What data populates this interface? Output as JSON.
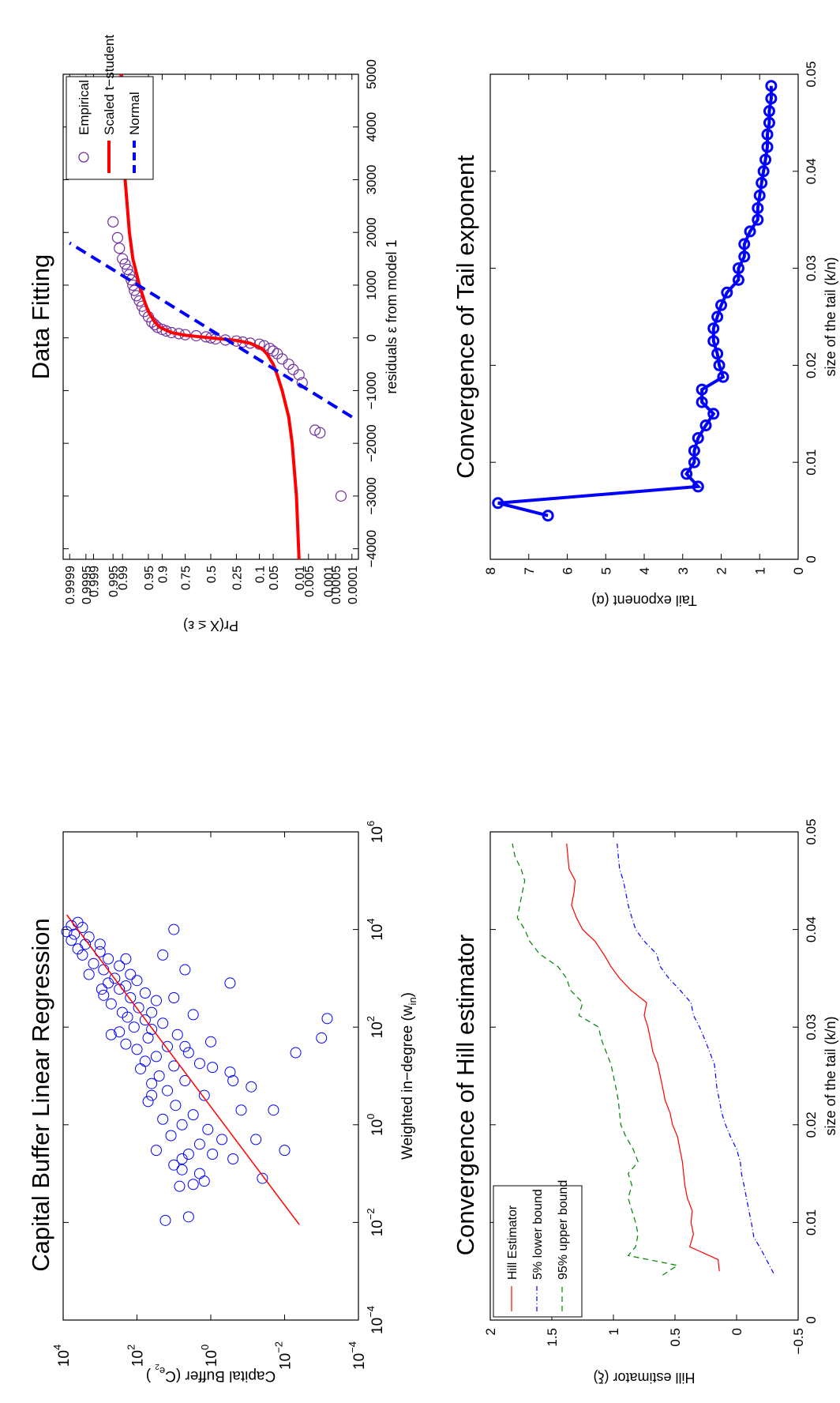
{
  "chart_data": [
    {
      "id": "capital-buffer",
      "type": "scatter",
      "title": "Capital Buffer Linear Regression",
      "xlabel": "Weighted in−degree (w",
      "xlabel_sub": "in",
      "xlabel_end": ")",
      "ylabel": "Capital Buffer (C",
      "ylabel_sub": "e",
      "ylabel_subsub": "2",
      "ylabel_end": " )",
      "xscale": "log",
      "yscale": "log",
      "xlim": [
        0.0001,
        1000000
      ],
      "ylim": [
        0.0001,
        10000
      ],
      "xticks": [
        0.0001,
        0.01,
        1,
        100,
        10000,
        1000000
      ],
      "xtick_labels": [
        {
          "base": "10",
          "exp": "−4"
        },
        {
          "base": "10",
          "exp": "−2"
        },
        {
          "base": "10",
          "exp": "0"
        },
        {
          "base": "10",
          "exp": "2"
        },
        {
          "base": "10",
          "exp": "4"
        },
        {
          "base": "10",
          "exp": "6"
        }
      ],
      "yticks": [
        0.0001,
        0.01,
        1,
        100,
        10000
      ],
      "ytick_labels": [
        {
          "base": "10",
          "exp": "−4"
        },
        {
          "base": "10",
          "exp": "−2"
        },
        {
          "base": "10",
          "exp": "0"
        },
        {
          "base": "10",
          "exp": "2"
        },
        {
          "base": "10",
          "exp": "4"
        }
      ],
      "regression": {
        "x": [
          0.009,
          20000
        ],
        "y": [
          0.004,
          8000
        ],
        "color": "#ff0000"
      },
      "marker_color": "#0000ff",
      "points": [
        [
          0.011,
          17
        ],
        [
          0.013,
          4
        ],
        [
          0.055,
          7
        ],
        [
          0.06,
          3
        ],
        [
          0.07,
          1.5
        ],
        [
          0.08,
          0.04
        ],
        [
          0.1,
          2
        ],
        [
          0.12,
          6
        ],
        [
          0.15,
          10
        ],
        [
          0.2,
          0.25
        ],
        [
          0.25,
          4
        ],
        [
          0.3,
          30
        ],
        [
          0.4,
          2
        ],
        [
          0.5,
          0.5
        ],
        [
          0.6,
          12
        ],
        [
          0.8,
          1.2
        ],
        [
          1,
          6
        ],
        [
          1.3,
          20
        ],
        [
          1.6,
          3
        ],
        [
          2,
          0.15
        ],
        [
          2.5,
          9
        ],
        [
          3,
          50
        ],
        [
          4,
          1.5
        ],
        [
          5,
          15
        ],
        [
          6,
          0.08
        ],
        [
          7,
          40
        ],
        [
          8,
          5
        ],
        [
          10,
          25
        ],
        [
          12,
          0.3
        ],
        [
          14,
          80
        ],
        [
          16,
          10
        ],
        [
          18,
          2
        ],
        [
          20,
          60
        ],
        [
          25,
          30
        ],
        [
          30,
          4
        ],
        [
          35,
          100
        ],
        [
          40,
          15
        ],
        [
          45,
          200
        ],
        [
          50,
          1
        ],
        [
          60,
          50
        ],
        [
          70,
          8
        ],
        [
          80,
          300
        ],
        [
          90,
          40
        ],
        [
          100,
          120
        ],
        [
          120,
          20
        ],
        [
          140,
          60
        ],
        [
          160,
          180
        ],
        [
          180,
          3
        ],
        [
          200,
          250
        ],
        [
          250,
          90
        ],
        [
          300,
          500
        ],
        [
          350,
          30
        ],
        [
          400,
          150
        ],
        [
          450,
          800
        ],
        [
          500,
          60
        ],
        [
          600,
          300
        ],
        [
          700,
          200
        ],
        [
          800,
          600
        ],
        [
          900,
          100
        ],
        [
          1000,
          400
        ],
        [
          1200,
          2000
        ],
        [
          1500,
          800
        ],
        [
          1800,
          300
        ],
        [
          2000,
          1500
        ],
        [
          2500,
          600
        ],
        [
          3000,
          3000
        ],
        [
          3500,
          1000
        ],
        [
          4000,
          4000
        ],
        [
          5000,
          2500
        ],
        [
          6000,
          6000
        ],
        [
          7000,
          2000
        ],
        [
          8000,
          5000
        ],
        [
          9000,
          8000
        ],
        [
          10000,
          10
        ],
        [
          11000,
          3000
        ],
        [
          12000,
          6000
        ],
        [
          14000,
          4000
        ],
        [
          0.3,
          0.01
        ],
        [
          0.5,
          0.06
        ],
        [
          2,
          0.02
        ],
        [
          30,
          0.005
        ],
        [
          60,
          0.001
        ],
        [
          150,
          0.0007
        ],
        [
          800,
          0.3
        ],
        [
          1500,
          5
        ],
        [
          3000,
          20
        ],
        [
          0.2,
          6
        ],
        [
          0.25,
          0.9
        ],
        [
          15,
          0.9
        ],
        [
          8,
          0.25
        ],
        [
          4,
          40
        ],
        [
          40,
          5
        ],
        [
          70,
          500
        ],
        [
          200,
          40
        ],
        [
          400,
          10
        ],
        [
          600,
          900
        ],
        [
          1200,
          150
        ],
        [
          2500,
          200
        ],
        [
          5000,
          1000
        ]
      ]
    },
    {
      "id": "data-fitting",
      "type": "line",
      "title": "Data Fitting",
      "xlabel": "residuals ε from model 1",
      "ylabel": "Pr(X ≤ ε)",
      "xlim": [
        -4200,
        5000
      ],
      "xticks": [
        -4000,
        -3000,
        -2000,
        -1000,
        0,
        1000,
        2000,
        3000,
        4000,
        5000
      ],
      "xtick_labels": [
        "−4000",
        "−3000",
        "−2000",
        "−1000",
        "0",
        "1000",
        "2000",
        "3000",
        "4000",
        "5000"
      ],
      "yticks": [
        0.0001,
        0.0005,
        0.001,
        0.005,
        0.01,
        0.05,
        0.1,
        0.25,
        0.5,
        0.75,
        0.9,
        0.95,
        0.99,
        0.995,
        0.999,
        0.9995,
        0.9999
      ],
      "ytick_labels": [
        "0.0001",
        "0.0005",
        "0.001",
        "0.005",
        "0.01",
        "0.05",
        "0.1",
        "0.25",
        "0.5",
        "0.75",
        "0.9",
        "0.95",
        "0.99",
        "0.995",
        "0.999",
        "0.9995",
        "0.9999"
      ],
      "legend": {
        "position": "top-right",
        "entries": [
          "Empirical",
          "Scaled t−student",
          "Normal"
        ]
      },
      "series": [
        {
          "name": "Empirical",
          "style": "markers",
          "color": "#7030a0",
          "x": [
            -3000,
            -1800,
            -1750,
            -850,
            -700,
            -600,
            -500,
            -400,
            -300,
            -250,
            -200,
            -150,
            -120,
            -100,
            -80,
            -60,
            -40,
            -20,
            0,
            20,
            40,
            60,
            80,
            100,
            130,
            160,
            200,
            250,
            300,
            400,
            500,
            600,
            700,
            800,
            900,
            1000,
            1100,
            1200,
            1300,
            1400,
            1500,
            1700,
            1900,
            2200,
            3200,
            3400,
            4100,
            4500
          ],
          "y": [
            0.0003,
            0.002,
            0.003,
            0.008,
            0.01,
            0.015,
            0.02,
            0.03,
            0.04,
            0.05,
            0.06,
            0.08,
            0.1,
            0.15,
            0.2,
            0.25,
            0.35,
            0.45,
            0.5,
            0.55,
            0.65,
            0.75,
            0.8,
            0.85,
            0.88,
            0.9,
            0.92,
            0.93,
            0.94,
            0.95,
            0.96,
            0.965,
            0.97,
            0.975,
            0.978,
            0.98,
            0.982,
            0.984,
            0.986,
            0.988,
            0.99,
            0.992,
            0.993,
            0.995,
            0.997,
            0.9975,
            0.9985,
            0.9986
          ]
        },
        {
          "name": "Scaled t−student",
          "style": "solid",
          "color": "#ff0000",
          "x": [
            -4200,
            -3000,
            -2000,
            -1500,
            -1000,
            -700,
            -500,
            -300,
            -200,
            -100,
            -50,
            0,
            50,
            100,
            200,
            300,
            500,
            700,
            1000,
            1500,
            2000,
            3000,
            4200,
            5000
          ],
          "y": [
            0.01,
            0.012,
            0.016,
            0.02,
            0.03,
            0.04,
            0.05,
            0.07,
            0.09,
            0.15,
            0.25,
            0.5,
            0.75,
            0.85,
            0.91,
            0.93,
            0.95,
            0.96,
            0.97,
            0.98,
            0.984,
            0.988,
            0.99,
            0.991
          ]
        },
        {
          "name": "Normal",
          "style": "dashed",
          "color": "#0000ff",
          "x": [
            -1500,
            1800
          ],
          "y": [
            0.0001,
            0.9999
          ]
        }
      ]
    },
    {
      "id": "hill-estimator",
      "type": "line",
      "title": "Convergence of Hill estimator",
      "xlabel": "size of the tail (k/n)",
      "ylabel": "Hill estimator (ξ)",
      "xlim": [
        0,
        0.05
      ],
      "ylim": [
        -0.5,
        2
      ],
      "xticks": [
        0,
        0.01,
        0.02,
        0.03,
        0.04,
        0.05
      ],
      "xtick_labels": [
        "0",
        "0.01",
        "0.02",
        "0.03",
        "0.04",
        "0.05"
      ],
      "yticks": [
        -0.5,
        0,
        0.5,
        1,
        1.5,
        2
      ],
      "ytick_labels": [
        "−0.5",
        "0",
        "0.5",
        "1",
        "1.5",
        "2"
      ],
      "legend": {
        "position": "top-left",
        "entries": [
          "Hill Estimator",
          "5% lower bound",
          "95% upper bound"
        ]
      },
      "series": [
        {
          "name": "Hill Estimator",
          "style": "solid",
          "color": "#ff0000",
          "x": [
            0.005,
            0.0062,
            0.0075,
            0.0088,
            0.01,
            0.0112,
            0.0125,
            0.0138,
            0.015,
            0.0162,
            0.0175,
            0.0188,
            0.02,
            0.0212,
            0.0225,
            0.0238,
            0.025,
            0.0262,
            0.0275,
            0.0288,
            0.03,
            0.0312,
            0.0325,
            0.0338,
            0.035,
            0.0362,
            0.0375,
            0.0388,
            0.04,
            0.0412,
            0.0425,
            0.0438,
            0.045,
            0.0462,
            0.0475,
            0.0488
          ],
          "y": [
            0.14,
            0.15,
            0.38,
            0.35,
            0.37,
            0.36,
            0.4,
            0.42,
            0.43,
            0.44,
            0.46,
            0.48,
            0.52,
            0.54,
            0.58,
            0.6,
            0.62,
            0.64,
            0.68,
            0.7,
            0.72,
            0.75,
            0.73,
            0.86,
            0.95,
            1.02,
            1.08,
            1.15,
            1.25,
            1.3,
            1.34,
            1.32,
            1.31,
            1.36,
            1.37,
            1.38
          ]
        },
        {
          "name": "5% lower bound",
          "style": "dashdot",
          "color": "#0000ff",
          "x": [
            0.0048,
            0.006,
            0.0072,
            0.0085,
            0.01,
            0.0112,
            0.0125,
            0.0138,
            0.015,
            0.0162,
            0.0175,
            0.0188,
            0.02,
            0.0212,
            0.0225,
            0.0238,
            0.025,
            0.0262,
            0.0275,
            0.0288,
            0.03,
            0.0312,
            0.0325,
            0.0338,
            0.035,
            0.0362,
            0.0375,
            0.0388,
            0.04,
            0.0412,
            0.0425,
            0.0438,
            0.045,
            0.0462,
            0.0475,
            0.0488
          ],
          "y": [
            -0.3,
            -0.25,
            -0.2,
            -0.14,
            -0.12,
            -0.1,
            -0.08,
            -0.06,
            -0.04,
            -0.03,
            0,
            0.05,
            0.09,
            0.12,
            0.14,
            0.16,
            0.17,
            0.18,
            0.22,
            0.26,
            0.3,
            0.35,
            0.37,
            0.46,
            0.55,
            0.62,
            0.65,
            0.75,
            0.82,
            0.85,
            0.88,
            0.9,
            0.92,
            0.95,
            0.96,
            0.97
          ]
        },
        {
          "name": "95% upper bound",
          "style": "dashed",
          "color": "#008000",
          "x": [
            0.0046,
            0.0056,
            0.0066,
            0.0075,
            0.0088,
            0.01,
            0.0112,
            0.0125,
            0.0138,
            0.015,
            0.0162,
            0.0175,
            0.0188,
            0.02,
            0.0212,
            0.0225,
            0.0238,
            0.025,
            0.0262,
            0.0275,
            0.0288,
            0.03,
            0.0312,
            0.0325,
            0.0338,
            0.035,
            0.0362,
            0.0375,
            0.0388,
            0.04,
            0.0412,
            0.0425,
            0.0438,
            0.045,
            0.0462,
            0.0475,
            0.0488
          ],
          "y": [
            0.6,
            0.48,
            0.88,
            0.82,
            0.8,
            0.82,
            0.85,
            0.88,
            0.85,
            0.88,
            0.8,
            0.84,
            0.9,
            0.94,
            0.95,
            0.96,
            0.98,
            1.0,
            1.02,
            1.06,
            1.1,
            1.12,
            1.28,
            1.25,
            1.35,
            1.38,
            1.45,
            1.6,
            1.68,
            1.72,
            1.78,
            1.76,
            1.74,
            1.72,
            1.75,
            1.8,
            1.82
          ]
        }
      ]
    },
    {
      "id": "tail-exponent",
      "type": "line",
      "title": "Convergence of Tail exponent",
      "xlabel": "size of the tail (k/n)",
      "ylabel": "Tail exponent (α)",
      "xlim": [
        0,
        0.05
      ],
      "ylim": [
        0,
        8
      ],
      "xticks": [
        0,
        0.01,
        0.02,
        0.03,
        0.04,
        0.05
      ],
      "xtick_labels": [
        "0",
        "0.01",
        "0.02",
        "0.03",
        "0.04",
        "0.05"
      ],
      "yticks": [
        0,
        1,
        2,
        3,
        4,
        5,
        6,
        7,
        8
      ],
      "ytick_labels": [
        "0",
        "1",
        "2",
        "3",
        "4",
        "5",
        "6",
        "7",
        "8"
      ],
      "series": [
        {
          "name": "",
          "style": "solid-markers",
          "color": "#0000ff",
          "x": [
            0.0045,
            0.0058,
            0.0075,
            0.0088,
            0.01,
            0.0112,
            0.0125,
            0.0138,
            0.015,
            0.0162,
            0.0175,
            0.0188,
            0.02,
            0.0212,
            0.0225,
            0.0238,
            0.025,
            0.0262,
            0.0275,
            0.0288,
            0.03,
            0.0312,
            0.0325,
            0.0338,
            0.035,
            0.0362,
            0.0375,
            0.0388,
            0.04,
            0.0412,
            0.0425,
            0.0438,
            0.045,
            0.0462,
            0.0475,
            0.0488
          ],
          "y": [
            6.5,
            7.8,
            2.6,
            2.9,
            2.7,
            2.7,
            2.6,
            2.4,
            2.2,
            2.5,
            2.5,
            1.95,
            2.05,
            2.1,
            2.2,
            2.2,
            2.1,
            2.0,
            1.85,
            1.55,
            1.55,
            1.4,
            1.4,
            1.25,
            1.05,
            1.05,
            1.0,
            0.95,
            0.9,
            0.85,
            0.8,
            0.8,
            0.75,
            0.75,
            0.7,
            0.7
          ]
        }
      ]
    }
  ]
}
